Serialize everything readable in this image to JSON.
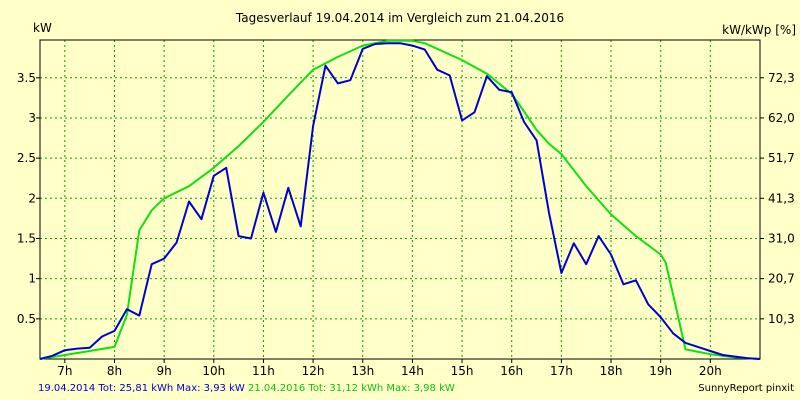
{
  "chart_data": {
    "type": "line",
    "title": "Tagesverlauf 19.04.2014 im Vergleich zum 21.04.2016",
    "ylabel": "kW",
    "y2label": "kW/kWp [%]",
    "xlim": [
      6.5,
      21.0
    ],
    "ylim": [
      0,
      3.97
    ],
    "xticks": [
      7,
      8,
      9,
      10,
      11,
      12,
      13,
      14,
      15,
      16,
      17,
      18,
      19,
      20
    ],
    "xtick_labels": [
      "7h",
      "8h",
      "9h",
      "10h",
      "11h",
      "12h",
      "13h",
      "14h",
      "15h",
      "16h",
      "17h",
      "18h",
      "19h",
      "20h"
    ],
    "yticks": [
      0.5,
      1,
      1.5,
      2,
      2.5,
      3,
      3.5
    ],
    "ytick_labels": [
      "0.5",
      "1",
      "1.5",
      "2",
      "2.5",
      "3",
      "3.5"
    ],
    "y2ticks": [
      0.5,
      1,
      1.5,
      2,
      2.5,
      3,
      3.5
    ],
    "y2tick_labels": [
      "10,3",
      "20,7",
      "31,0",
      "41,3",
      "51,7",
      "62,0",
      "72,3"
    ],
    "grid": true,
    "series": [
      {
        "name": "19.04.2014",
        "color": "#0000d0",
        "x": [
          6.5,
          6.75,
          7.0,
          7.25,
          7.5,
          7.75,
          8.0,
          8.25,
          8.5,
          8.75,
          9.0,
          9.25,
          9.5,
          9.75,
          10.0,
          10.25,
          10.5,
          10.75,
          11.0,
          11.25,
          11.5,
          11.75,
          12.0,
          12.25,
          12.5,
          12.75,
          13.0,
          13.25,
          13.5,
          13.75,
          14.0,
          14.25,
          14.5,
          14.75,
          15.0,
          15.25,
          15.5,
          15.75,
          16.0,
          16.25,
          16.5,
          16.75,
          17.0,
          17.25,
          17.5,
          17.75,
          18.0,
          18.25,
          18.5,
          18.75,
          19.0,
          19.25,
          19.5,
          19.75,
          20.0,
          20.25,
          20.5,
          20.75,
          21.0
        ],
        "y": [
          0.0,
          0.04,
          0.11,
          0.13,
          0.14,
          0.28,
          0.35,
          0.62,
          0.54,
          1.18,
          1.25,
          1.45,
          1.96,
          1.74,
          2.28,
          2.38,
          1.53,
          1.5,
          2.07,
          1.58,
          2.13,
          1.65,
          2.9,
          3.65,
          3.43,
          3.47,
          3.86,
          3.92,
          3.93,
          3.93,
          3.9,
          3.85,
          3.6,
          3.53,
          2.97,
          3.07,
          3.52,
          3.35,
          3.32,
          2.95,
          2.72,
          1.82,
          1.07,
          1.44,
          1.18,
          1.53,
          1.3,
          0.93,
          0.98,
          0.68,
          0.52,
          0.32,
          0.2,
          0.15,
          0.1,
          0.05,
          0.03,
          0.01,
          0.0
        ]
      },
      {
        "name": "21.04.2016",
        "color": "#10e010",
        "x": [
          6.5,
          7.0,
          7.5,
          8.0,
          8.25,
          8.5,
          8.75,
          9.0,
          9.5,
          10.0,
          10.5,
          11.0,
          11.5,
          12.0,
          12.5,
          13.0,
          13.5,
          14.0,
          14.25,
          14.5,
          15.0,
          15.5,
          16.0,
          16.25,
          16.5,
          16.75,
          17.0,
          17.5,
          18.0,
          18.5,
          19.0,
          19.1,
          19.25,
          19.5,
          20.0,
          20.5,
          21.0
        ],
        "y": [
          0.0,
          0.05,
          0.1,
          0.15,
          0.55,
          1.6,
          1.85,
          2.0,
          2.15,
          2.38,
          2.65,
          2.95,
          3.28,
          3.6,
          3.76,
          3.9,
          3.96,
          3.96,
          3.93,
          3.86,
          3.72,
          3.55,
          3.3,
          3.08,
          2.85,
          2.68,
          2.55,
          2.15,
          1.8,
          1.53,
          1.3,
          1.2,
          0.8,
          0.12,
          0.06,
          0.02,
          0.0
        ]
      }
    ],
    "footer": {
      "series1_text": "19.04.2014 Tot: 25,81 kWh Max: 3,93 kW",
      "series2_text": "21.04.2016 Tot: 31,12 kWh Max: 3,98 kW",
      "credit": "SunnyReport pinxit"
    }
  }
}
